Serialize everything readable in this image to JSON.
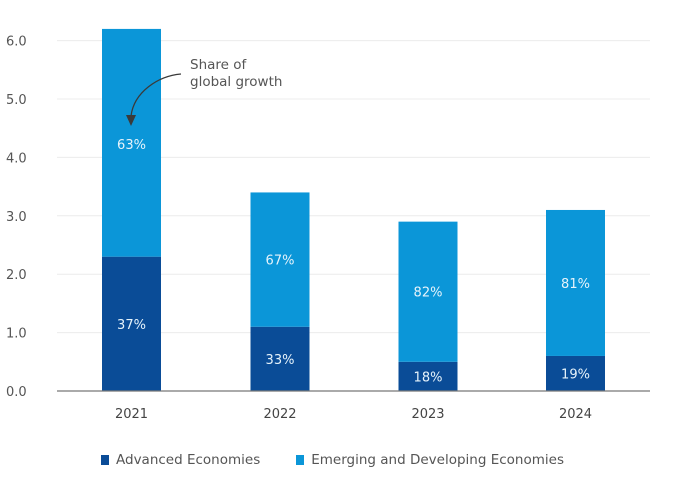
{
  "chart_data": {
    "type": "bar",
    "stacked": true,
    "title": "",
    "xlabel": "",
    "ylabel": "",
    "ylim": [
      0,
      6.0
    ],
    "yticks": [
      "0.0",
      "1.0",
      "2.0",
      "3.0",
      "4.0",
      "5.0",
      "6.0"
    ],
    "grid": true,
    "categories": [
      "2021",
      "2022",
      "2023",
      "2024"
    ],
    "series": [
      {
        "name": "Advanced Economies",
        "color": "#0a4c97",
        "values": [
          2.3,
          1.1,
          0.5,
          0.6
        ],
        "labels": [
          "37%",
          "33%",
          "18%",
          "19%"
        ]
      },
      {
        "name": "Emerging and Developing Economies",
        "color": "#0b96d8",
        "values": [
          3.9,
          2.3,
          2.4,
          2.5
        ],
        "labels": [
          "63%",
          "67%",
          "82%",
          "81%"
        ]
      }
    ],
    "totals": [
      6.2,
      3.4,
      2.9,
      3.1
    ],
    "annotation": {
      "text_lines": [
        "Share of",
        "global growth"
      ],
      "target_category": "2021",
      "arrow": true
    },
    "legend_position": "bottom-left"
  },
  "legend": {
    "items": [
      {
        "label": "Advanced Economies",
        "color": "#0a4c97"
      },
      {
        "label": "Emerging and Developing Economies",
        "color": "#0b96d8"
      }
    ]
  }
}
